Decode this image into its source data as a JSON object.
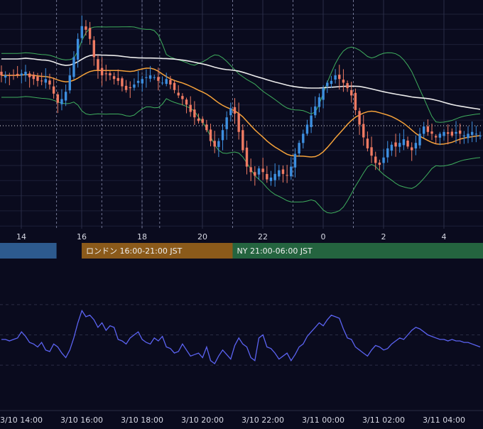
{
  "theme": {
    "background": "#0a0b1e",
    "grid": "#1d2038",
    "candle_up": "#3d8fe0",
    "candle_down": "#f07b63",
    "bb_color": "#3fae5e",
    "ma_color": "#f5a23a",
    "long_ma_color": "#ececec",
    "oscillator_color": "#5b63f2",
    "axis_text": "#d7d9e4",
    "dashed_line": "#8a8fb0",
    "tokyo_session": "#2d5a8e",
    "london_session": "#8b5a1a",
    "ny_session": "#24643f"
  },
  "sessions": [
    {
      "label": "",
      "start": "13:00",
      "end": "15:10",
      "color_key": "tokyo_session"
    },
    {
      "label": "ロンドン 16:00-21:00 JST",
      "start": "16:00",
      "end": "21:00",
      "color_key": "london_session"
    },
    {
      "label": "NY 21:00-06:00 JST",
      "start": "21:00",
      "end": "06:00",
      "color_key": "ny_session"
    }
  ],
  "chart_data": [
    {
      "type": "candlestick",
      "title": "",
      "x_tick_labels": [
        "14",
        "16",
        "18",
        "20",
        "22",
        "0",
        "2",
        "4"
      ],
      "indicators": [
        "bollinger_bands",
        "moving_average",
        "long_moving_average"
      ],
      "grid": true,
      "closes": [
        0.5,
        0.5,
        0.5,
        0.5,
        0.5,
        0.6,
        0.7,
        0.4,
        0.3,
        0.2,
        0.2,
        0.3,
        0.0,
        -0.5,
        -1.0,
        -0.8,
        -0.4,
        0.5,
        1.5,
        2.5,
        3.2,
        3.0,
        2.5,
        1.5,
        0.8,
        0.5,
        0.6,
        0.5,
        0.3,
        0.2,
        -0.1,
        -0.3,
        -0.2,
        0.0,
        0.2,
        0.3,
        0.4,
        0.5,
        0.4,
        0.2,
        0.1,
        0.3,
        0.0,
        -0.3,
        -0.6,
        -0.8,
        -1.1,
        -1.5,
        -1.8,
        -2.0,
        -2.1,
        -2.5,
        -3.1,
        -3.4,
        -3.1,
        -2.5,
        -1.8,
        -1.3,
        -1.6,
        -2.6,
        -3.6,
        -4.5,
        -4.8,
        -5.0,
        -4.6,
        -4.8,
        -5.2,
        -5.1,
        -4.9,
        -4.7,
        -4.9,
        -5.0,
        -4.5,
        -3.8,
        -3.2,
        -2.7,
        -2.2,
        -1.7,
        -1.2,
        -0.7,
        -0.2,
        0.1,
        0.2,
        0.5,
        0.3,
        0.1,
        -0.2,
        -0.6,
        -1.4,
        -2.2,
        -2.9,
        -3.5,
        -3.9,
        -4.3,
        -4.4,
        -4.0,
        -3.5,
        -3.3,
        -3.4,
        -3.2,
        -3.0,
        -3.4,
        -3.6,
        -3.2,
        -2.7,
        -2.3,
        -2.6,
        -2.7,
        -2.9,
        -2.7,
        -2.6,
        -2.7,
        -2.8,
        -2.6,
        -2.7,
        -2.8,
        -2.7,
        -2.6,
        -2.7,
        -2.8
      ]
    },
    {
      "type": "line",
      "title": "",
      "series": [
        {
          "values": [
            47,
            47,
            46,
            47,
            48,
            52,
            49,
            45,
            44,
            42,
            45,
            40,
            39,
            44,
            42,
            38,
            35,
            40,
            48,
            58,
            66,
            62,
            63,
            60,
            55,
            58,
            53,
            56,
            55,
            47,
            46,
            44,
            48,
            50,
            52,
            47,
            45,
            44,
            48,
            46,
            49,
            42,
            41,
            38,
            39,
            44,
            40,
            36,
            37,
            38,
            35,
            42,
            33,
            31,
            36,
            40,
            37,
            34,
            43,
            48,
            44,
            42,
            35,
            33,
            48,
            50,
            42,
            41,
            38,
            34,
            36,
            38,
            33,
            37,
            42,
            44,
            49,
            52,
            55,
            58,
            56,
            60,
            63,
            62,
            61,
            54,
            48,
            47,
            42,
            40,
            38,
            36,
            40,
            43,
            42,
            40,
            41,
            44,
            46,
            48,
            47,
            50,
            53,
            55,
            54,
            52,
            50,
            49,
            48,
            47,
            47,
            46,
            47,
            46,
            46,
            45,
            45,
            44,
            43,
            42
          ]
        }
      ],
      "grid": true
    }
  ],
  "time_labels": [
    "3/10 14:00",
    "3/10 16:00",
    "3/10 18:00",
    "3/10 20:00",
    "3/10 22:00",
    "3/11 00:00",
    "3/11 02:00",
    "3/11 04:00"
  ]
}
